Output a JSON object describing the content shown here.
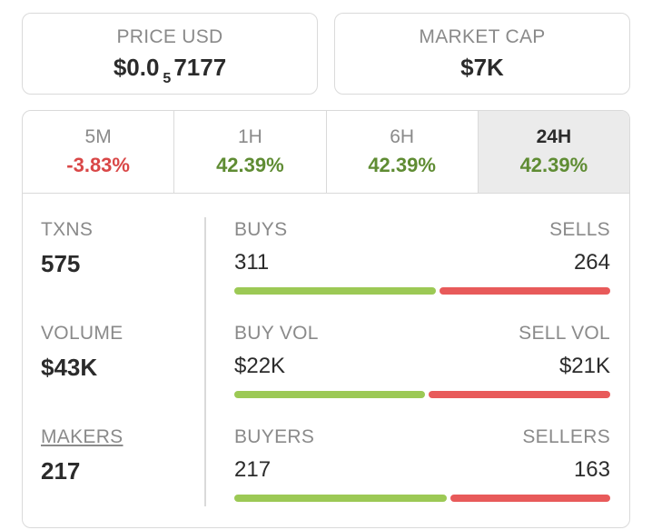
{
  "price": {
    "label": "PRICE USD",
    "value_prefix": "$0.0",
    "value_subscript": "5",
    "value_suffix": "7177"
  },
  "market_cap": {
    "label": "MARKET CAP",
    "value": "$7K"
  },
  "tabs": [
    {
      "label": "5M",
      "change": "-3.83%",
      "trend": "negative"
    },
    {
      "label": "1H",
      "change": "42.39%",
      "trend": "positive"
    },
    {
      "label": "6H",
      "change": "42.39%",
      "trend": "positive"
    },
    {
      "label": "24H",
      "change": "42.39%",
      "trend": "positive",
      "selected": true
    }
  ],
  "metrics": {
    "txns": {
      "label": "TXNS",
      "value": "575"
    },
    "volume": {
      "label": "VOLUME",
      "value": "$43K"
    },
    "makers": {
      "label": "MAKERS",
      "value": "217"
    }
  },
  "splits": {
    "txns": {
      "left_label": "BUYS",
      "left_value": "311",
      "right_label": "SELLS",
      "right_value": "264",
      "buy_fraction": 0.541
    },
    "volume": {
      "left_label": "BUY VOL",
      "left_value": "$22K",
      "right_label": "SELL VOL",
      "right_value": "$21K",
      "buy_fraction": 0.512
    },
    "makers": {
      "left_label": "BUYERS",
      "left_value": "217",
      "right_label": "SELLERS",
      "right_value": "163",
      "buy_fraction": 0.571
    }
  },
  "colors": {
    "positive": "#5f8c33",
    "negative": "#d94747",
    "buy_bar": "#9cc955",
    "sell_bar": "#e85a5a"
  }
}
